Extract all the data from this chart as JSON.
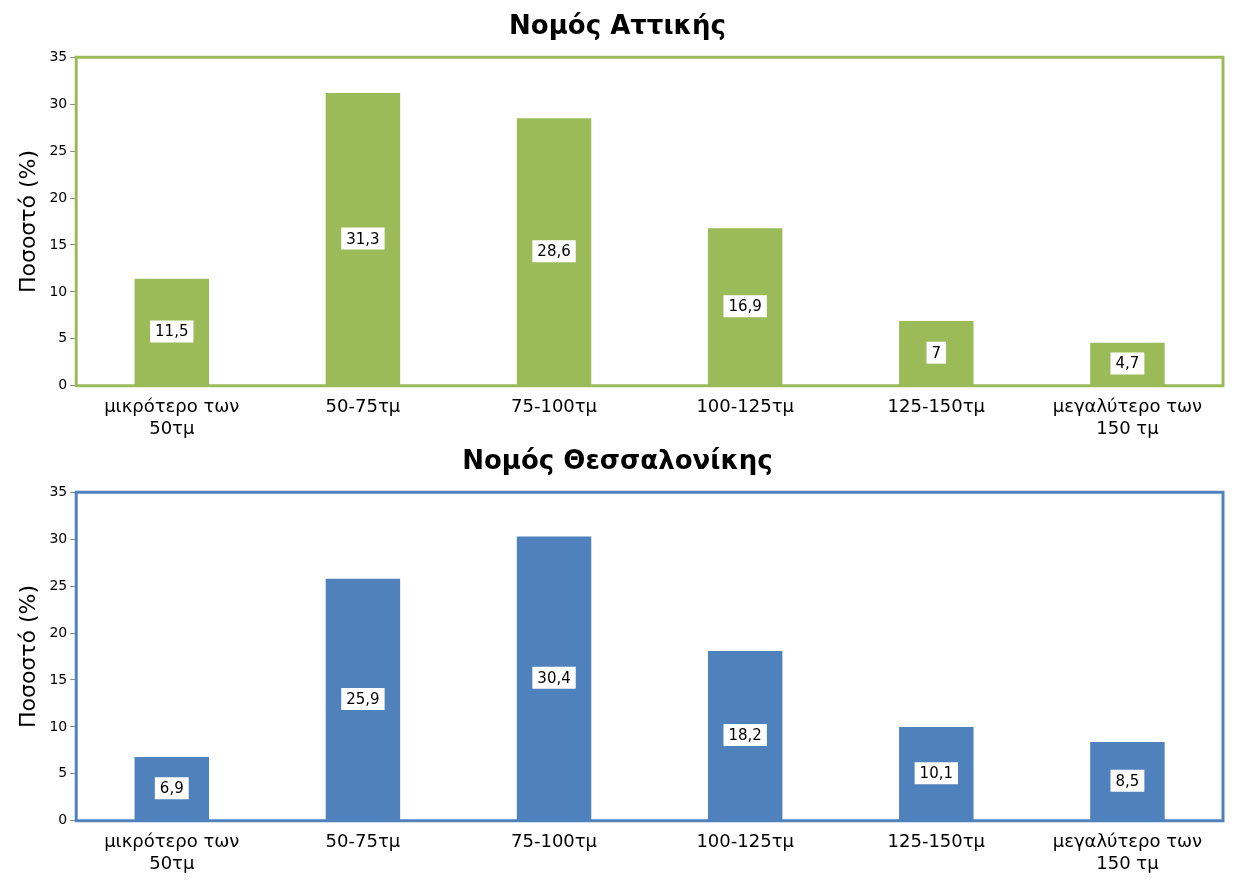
{
  "chart_data": [
    {
      "type": "bar",
      "title": "Νομός Αττικής",
      "ylabel": "Ποσοστό (%)",
      "categories": [
        "μικρότερο των 50τμ",
        "50-75τμ",
        "75-100τμ",
        "100-125τμ",
        "125-150τμ",
        "μεγαλύτερο των 150 τμ"
      ],
      "series": [
        {
          "color": "#9bbb59",
          "values": [
            11.5,
            31.3,
            28.6,
            16.9,
            7,
            4.7
          ],
          "value_labels": [
            "11,5",
            "31,3",
            "28,6",
            "16,9",
            "7",
            "4,7"
          ]
        }
      ],
      "ylim": [
        0,
        35
      ],
      "yticks": [
        0,
        5,
        10,
        15,
        20,
        25,
        30,
        35
      ],
      "grid": false,
      "legend": false
    },
    {
      "type": "bar",
      "title": "Νομός Θεσσαλονίκης",
      "ylabel": "Ποσοστό (%)",
      "categories": [
        "μικρότερο των 50τμ",
        "50-75τμ",
        "75-100τμ",
        "100-125τμ",
        "125-150τμ",
        "μεγαλύτερο των 150 τμ"
      ],
      "series": [
        {
          "color": "#4f81bd",
          "values": [
            6.9,
            25.9,
            30.4,
            18.2,
            10.1,
            8.5
          ],
          "value_labels": [
            "6,9",
            "25,9",
            "30,4",
            "18,2",
            "10,1",
            "8,5"
          ]
        }
      ],
      "ylim": [
        0,
        35
      ],
      "yticks": [
        0,
        5,
        10,
        15,
        20,
        25,
        30,
        35
      ],
      "grid": false,
      "legend": false
    }
  ]
}
